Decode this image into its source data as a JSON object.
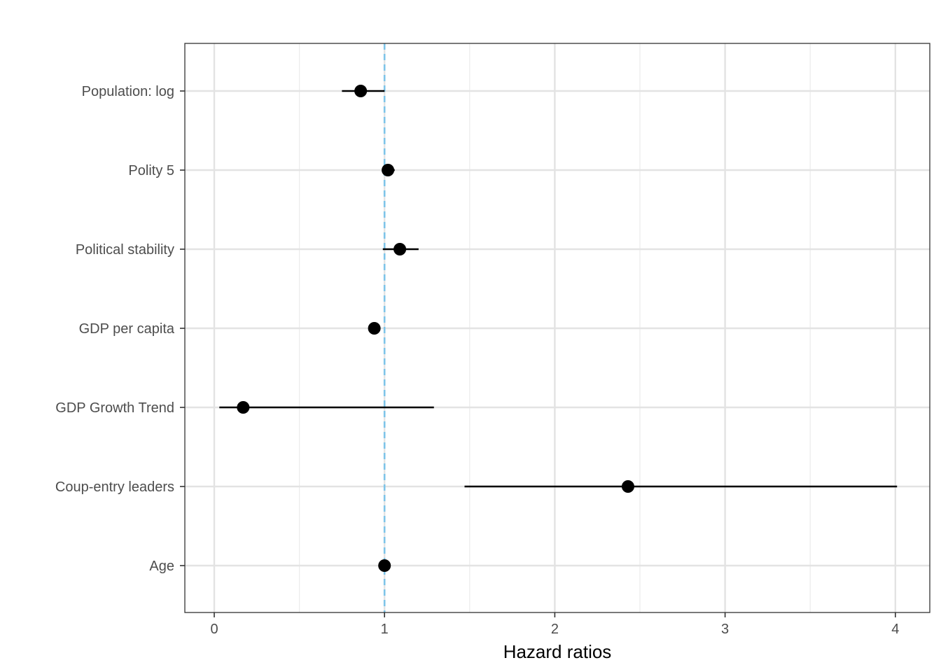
{
  "chart_data": {
    "type": "scatter",
    "subtype": "forest-plot",
    "title": "",
    "xlabel": "Hazard ratios",
    "ylabel": "",
    "xlim": [
      -0.17,
      4.2
    ],
    "x_ticks": [
      "0",
      "1",
      "2",
      "3",
      "4"
    ],
    "x_tick_values": [
      0,
      1,
      2,
      3,
      4
    ],
    "reference_line": {
      "x": 1,
      "style": "dashed",
      "color": "#7ec4e8"
    },
    "grid": true,
    "legend": "none",
    "point_color": "#000000",
    "categories": [
      "Population: log",
      "Polity 5",
      "Political stability",
      "GDP per capita",
      "GDP Growth Trend",
      "Coup-entry leaders",
      "Age"
    ],
    "estimates": [
      0.86,
      1.02,
      1.09,
      0.94,
      0.17,
      2.43,
      1.0
    ],
    "ci_low": [
      0.75,
      0.99,
      0.99,
      0.91,
      0.03,
      1.47,
      0.99
    ],
    "ci_high": [
      1.0,
      1.06,
      1.2,
      0.97,
      1.29,
      4.01,
      1.01
    ]
  }
}
